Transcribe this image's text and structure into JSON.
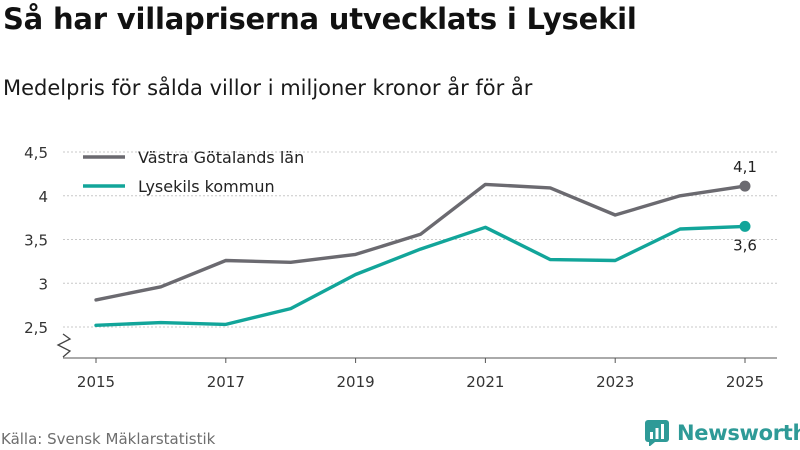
{
  "header": {
    "title": "Så har villapriserna utvecklats i Lysekil",
    "subtitle": "Medelpris för sålda villor i miljoner kronor år för år"
  },
  "footer": {
    "source": "Källa: Svensk Mäklarstatistik",
    "brand": "Newsworthy"
  },
  "colors": {
    "series_1": "#6b6a70",
    "series_2": "#12a59a",
    "grid": "#c8c8c8",
    "brand": "#2e9a97"
  },
  "chart_data": {
    "type": "line",
    "title": "Så har villapriserna utvecklats i Lysekil",
    "subtitle": "Medelpris för sålda villor i miljoner kronor år för år",
    "xlabel": "",
    "ylabel": "",
    "x": [
      2015,
      2016,
      2017,
      2018,
      2019,
      2020,
      2021,
      2022,
      2023,
      2024,
      2025
    ],
    "x_tick_labels": [
      "2015",
      "2017",
      "2019",
      "2021",
      "2023",
      "2025"
    ],
    "x_tick_values": [
      2015,
      2017,
      2019,
      2021,
      2023,
      2025
    ],
    "y_tick_labels": [
      "2,5",
      "3",
      "3,5",
      "4",
      "4,5"
    ],
    "y_tick_values": [
      2.5,
      3.0,
      3.5,
      4.0,
      4.5
    ],
    "ylim": [
      2.5,
      4.5
    ],
    "axis_break": true,
    "grid": true,
    "legend_position": "top-left",
    "series": [
      {
        "name": "Västra Götalands län",
        "values": [
          2.81,
          2.96,
          3.26,
          3.24,
          3.33,
          3.56,
          4.13,
          4.09,
          3.78,
          4.0,
          4.11
        ],
        "end_label": "4,1",
        "end_label_position": "above"
      },
      {
        "name": "Lysekils kommun",
        "values": [
          2.52,
          2.55,
          2.53,
          2.71,
          3.1,
          3.39,
          3.64,
          3.27,
          3.26,
          3.62,
          3.65
        ],
        "end_label": "3,6",
        "end_label_position": "below"
      }
    ]
  }
}
